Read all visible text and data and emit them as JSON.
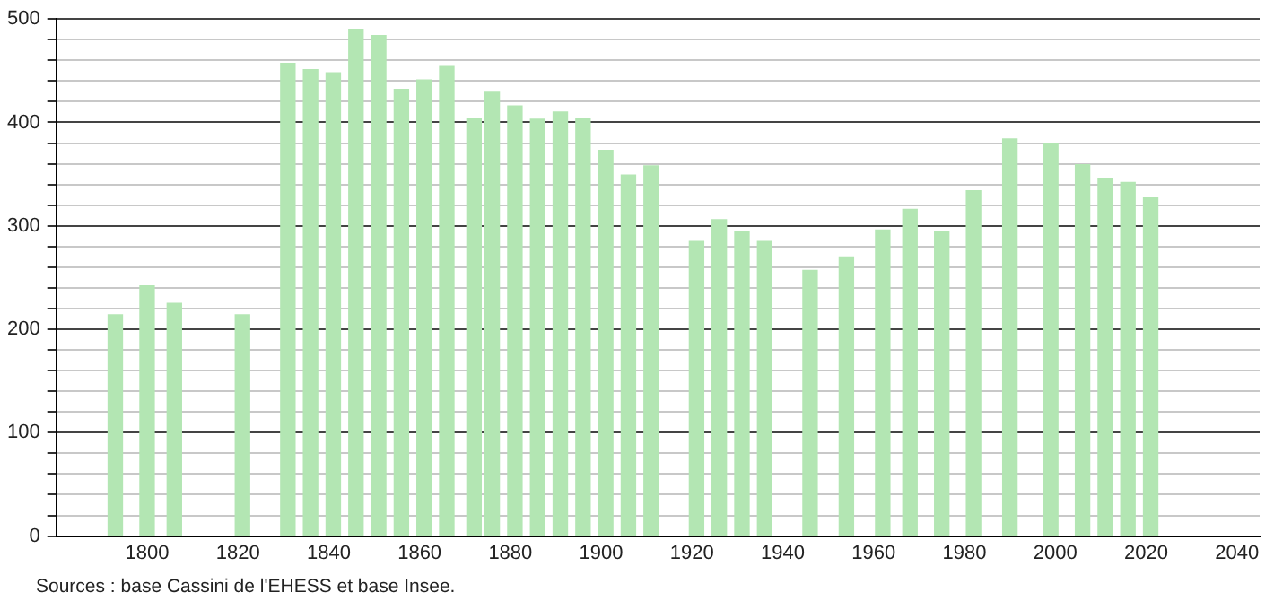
{
  "chart_data": {
    "type": "bar",
    "x": [
      1793,
      1800,
      1806,
      1821,
      1831,
      1836,
      1841,
      1846,
      1851,
      1856,
      1861,
      1866,
      1872,
      1876,
      1881,
      1886,
      1891,
      1896,
      1901,
      1906,
      1911,
      1921,
      1926,
      1931,
      1936,
      1946,
      1954,
      1962,
      1968,
      1975,
      1982,
      1990,
      1999,
      2006,
      2011,
      2016,
      2021
    ],
    "values": [
      214,
      242,
      225,
      214,
      457,
      451,
      448,
      490,
      484,
      432,
      441,
      454,
      404,
      430,
      416,
      403,
      410,
      404,
      373,
      349,
      358,
      285,
      306,
      294,
      285,
      257,
      270,
      296,
      316,
      294,
      334,
      384,
      380,
      359,
      346,
      342,
      327
    ],
    "color": "#b3e6b3",
    "xlim": [
      1780,
      2045
    ],
    "xticks": [
      1800,
      1820,
      1840,
      1860,
      1880,
      1900,
      1920,
      1940,
      1960,
      1980,
      2000,
      2020,
      2040
    ],
    "ylim": [
      0,
      500
    ],
    "yticks": [
      0,
      {
        "value": 20,
        "label": null
      },
      {
        "value": 40,
        "label": null
      },
      {
        "value": 60,
        "label": null
      },
      {
        "value": 80,
        "label": null
      },
      100,
      {
        "value": 120,
        "label": null
      },
      {
        "value": 140,
        "label": null
      },
      {
        "value": 160,
        "label": null
      },
      {
        "value": 180,
        "label": null
      },
      200,
      {
        "value": 220,
        "label": null
      },
      {
        "value": 240,
        "label": null
      },
      {
        "value": 260,
        "label": null
      },
      {
        "value": 280,
        "label": null
      },
      300,
      {
        "value": 320,
        "label": null
      },
      {
        "value": 340,
        "label": null
      },
      {
        "value": 360,
        "label": null
      },
      {
        "value": 380,
        "label": null
      },
      400,
      {
        "value": 420,
        "label": null
      },
      {
        "value": 440,
        "label": null
      },
      {
        "value": 460,
        "label": null
      },
      {
        "value": 480,
        "label": null
      },
      500
    ],
    "grid": "y",
    "legend": false,
    "annotations": [
      "Sources : base Cassini de l'EHESS et base Insee."
    ]
  }
}
